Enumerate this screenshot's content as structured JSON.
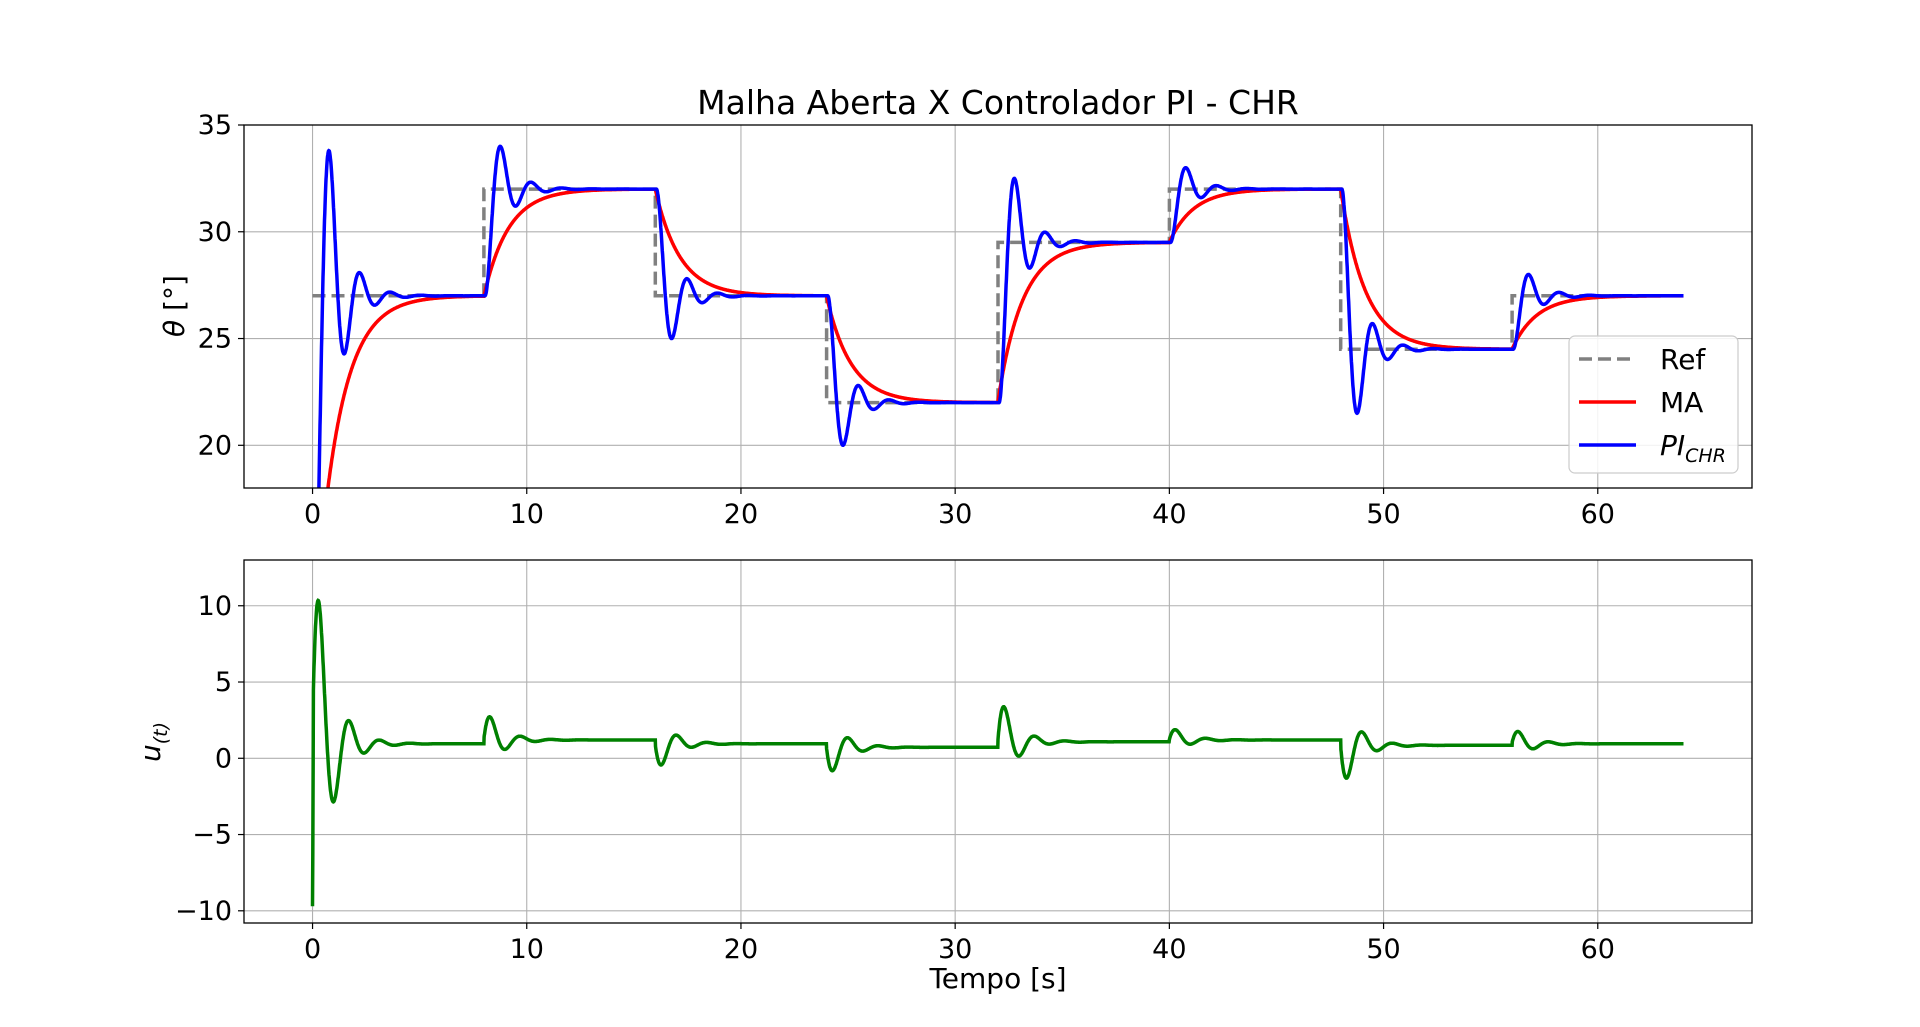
{
  "chart_data": [
    {
      "type": "line",
      "title": "Malha Aberta X Controlador PI - CHR",
      "ylabel_symbol": "θ",
      "ylabel_unit": "[°]",
      "xlim": [
        -3.2,
        67.2
      ],
      "ylim": [
        18,
        35
      ],
      "xticks": [
        0,
        10,
        20,
        30,
        40,
        50,
        60
      ],
      "yticks": [
        20,
        25,
        30,
        35
      ],
      "grid": true,
      "legend_position": "lower-right",
      "steps": [
        {
          "t": 0,
          "ref": 27
        },
        {
          "t": 8,
          "ref": 32
        },
        {
          "t": 16,
          "ref": 27
        },
        {
          "t": 24,
          "ref": 22
        },
        {
          "t": 32,
          "ref": 29.5
        },
        {
          "t": 40,
          "ref": 32
        },
        {
          "t": 48,
          "ref": 24.5
        },
        {
          "t": 56,
          "ref": 27
        }
      ],
      "t_end": 64,
      "series": [
        {
          "name": "Ref",
          "color": "#808080",
          "style": "dashed"
        },
        {
          "name": "MA",
          "color": "#ff0000",
          "style": "solid",
          "initial_value": 10,
          "time_constant": 1.15
        },
        {
          "name_base": "PI",
          "name_sub": "CHR",
          "color": "#0000ff",
          "style": "solid"
        }
      ]
    },
    {
      "type": "line",
      "xlabel": "Tempo [s]",
      "ylabel_base": "u",
      "ylabel_sub": "(t)",
      "xlim": [
        -3.2,
        67.2
      ],
      "ylim": [
        -10.8,
        13
      ],
      "xticks": [
        0,
        10,
        20,
        30,
        40,
        50,
        60
      ],
      "yticks": [
        -10,
        -5,
        0,
        5,
        10
      ],
      "ytick_labels": [
        "−10",
        "−5",
        "0",
        "5",
        "10"
      ],
      "grid": true,
      "series": [
        {
          "color": "#008000",
          "style": "solid",
          "steady_levels": [
            {
              "t": 0,
              "u": 0.95
            },
            {
              "t": 8,
              "u": 1.2
            },
            {
              "t": 16,
              "u": 0.95
            },
            {
              "t": 24,
              "u": 0.72
            },
            {
              "t": 32,
              "u": 1.08
            },
            {
              "t": 40,
              "u": 1.2
            },
            {
              "t": 48,
              "u": 0.85
            },
            {
              "t": 56,
              "u": 0.95
            }
          ],
          "peaks": [
            {
              "t": 0.25,
              "u": 12
            },
            {
              "t": 8.3,
              "u": 3.0
            },
            {
              "t": 16.3,
              "u": -0.7
            },
            {
              "t": 24.3,
              "u": -1.1
            },
            {
              "t": 32.3,
              "u": 3.8
            },
            {
              "t": 40.3,
              "u": 2.0
            },
            {
              "t": 48.3,
              "u": -1.7
            },
            {
              "t": 56.3,
              "u": 1.9
            }
          ],
          "initial_min": -9.7
        }
      ]
    }
  ]
}
